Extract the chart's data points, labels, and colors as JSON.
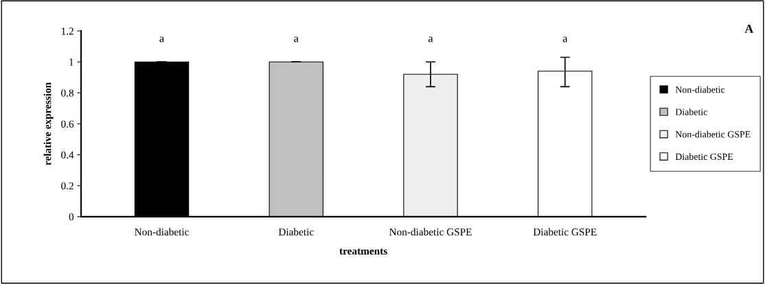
{
  "chart_data": {
    "type": "bar",
    "categories": [
      "Non-diabetic",
      "Diabetic",
      "Non-diabetic GSPE",
      "Diabetic GSPE"
    ],
    "series": [
      {
        "name": "Non-diabetic",
        "color": "#000000",
        "values": [
          1.0,
          null,
          null,
          null
        ],
        "errors": [
          0,
          null,
          null,
          null
        ]
      },
      {
        "name": "Diabetic",
        "color": "#c0c0c0",
        "values": [
          null,
          1.0,
          null,
          null
        ],
        "errors": [
          null,
          0,
          null,
          null
        ]
      },
      {
        "name": "Non-diabetic GSPE",
        "color": "#eeeeee",
        "values": [
          null,
          null,
          0.92,
          null
        ],
        "errors": [
          null,
          null,
          [
            0.84,
            1.0
          ],
          null
        ]
      },
      {
        "name": "Diabetic GSPE",
        "color": "#ffffff",
        "values": [
          null,
          null,
          null,
          0.94
        ],
        "errors": [
          null,
          null,
          null,
          [
            0.84,
            1.03
          ]
        ]
      }
    ],
    "xlabel": "treatments",
    "ylabel": "relative expression",
    "ylim": [
      0,
      1.2
    ],
    "yticks": [
      0,
      {
        "value": 0.2,
        "label": "0.2"
      },
      {
        "value": 0.4,
        "label": "0.4"
      },
      {
        "value": 0.6,
        "label": "0.6"
      },
      {
        "value": 0.8,
        "label": "0.8"
      },
      1,
      {
        "value": 1.2,
        "label": "1.2"
      }
    ],
    "annotations": [
      "a",
      "a",
      "a",
      "a",
      "A"
    ],
    "legend": "right",
    "grid": false
  }
}
